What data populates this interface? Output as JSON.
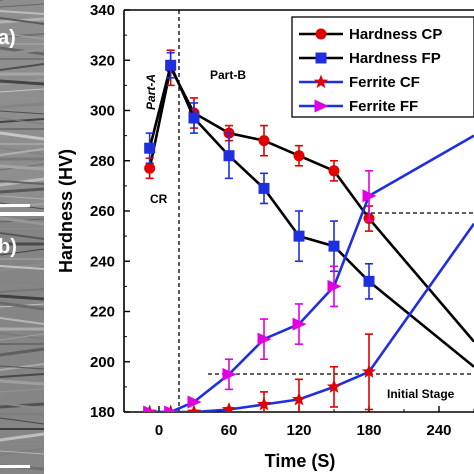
{
  "panels": [
    {
      "letter": "a)"
    },
    {
      "letter": "b)"
    }
  ],
  "chart_data": {
    "type": "line",
    "xlabel": "Time (S)",
    "ylabel": "Hardness (HV)",
    "xlim": [
      -30,
      270
    ],
    "ylim": [
      180,
      340
    ],
    "xticks": [
      0,
      60,
      120,
      180,
      240
    ],
    "yticks": [
      180,
      200,
      220,
      240,
      260,
      280,
      300,
      320,
      340
    ],
    "grid": false,
    "legend_position": "top-right",
    "series": [
      {
        "name": "Hardness CP",
        "color": "#e00000",
        "line_color": "#000000",
        "marker": "circle",
        "x": [
          -8,
          10,
          30,
          60,
          90,
          120,
          150,
          180,
          270
        ],
        "y": [
          277,
          317,
          299,
          291,
          288,
          282,
          276,
          257,
          208
        ],
        "err": [
          4,
          7,
          6,
          3,
          6,
          4,
          4,
          5,
          0
        ]
      },
      {
        "name": "Hardness FP",
        "color": "#1f2fe0",
        "line_color": "#000000",
        "marker": "square",
        "x": [
          -8,
          10,
          30,
          60,
          90,
          120,
          150,
          180,
          270
        ],
        "y": [
          285,
          318,
          297,
          282,
          269,
          250,
          246,
          232,
          198
        ],
        "err": [
          6,
          5,
          6,
          9,
          6,
          10,
          10,
          7,
          0
        ]
      },
      {
        "name": "Ferrite CF",
        "color": "#e00000",
        "line_color": "#1f2fe0",
        "marker": "star",
        "x": [
          -8,
          10,
          30,
          60,
          90,
          120,
          150,
          180,
          270
        ],
        "y": [
          180,
          180,
          180,
          181,
          183,
          185,
          190,
          196,
          255
        ],
        "err": [
          0,
          0,
          0,
          0,
          5,
          8,
          8,
          15,
          0
        ]
      },
      {
        "name": "Ferrite FF",
        "color": "#e000e0",
        "line_color": "#1f2fe0",
        "marker": "triangle-right",
        "x": [
          -8,
          10,
          30,
          60,
          90,
          120,
          150,
          180,
          270
        ],
        "y": [
          180,
          180,
          184,
          195,
          209,
          215,
          230,
          266,
          290
        ],
        "err": [
          0,
          0,
          0,
          6,
          8,
          8,
          8,
          10,
          0
        ]
      }
    ],
    "annotations": {
      "part_a": "Part-A",
      "part_b": "Part-B",
      "cr": "CR",
      "initial_stage": "Initial Stage"
    }
  }
}
